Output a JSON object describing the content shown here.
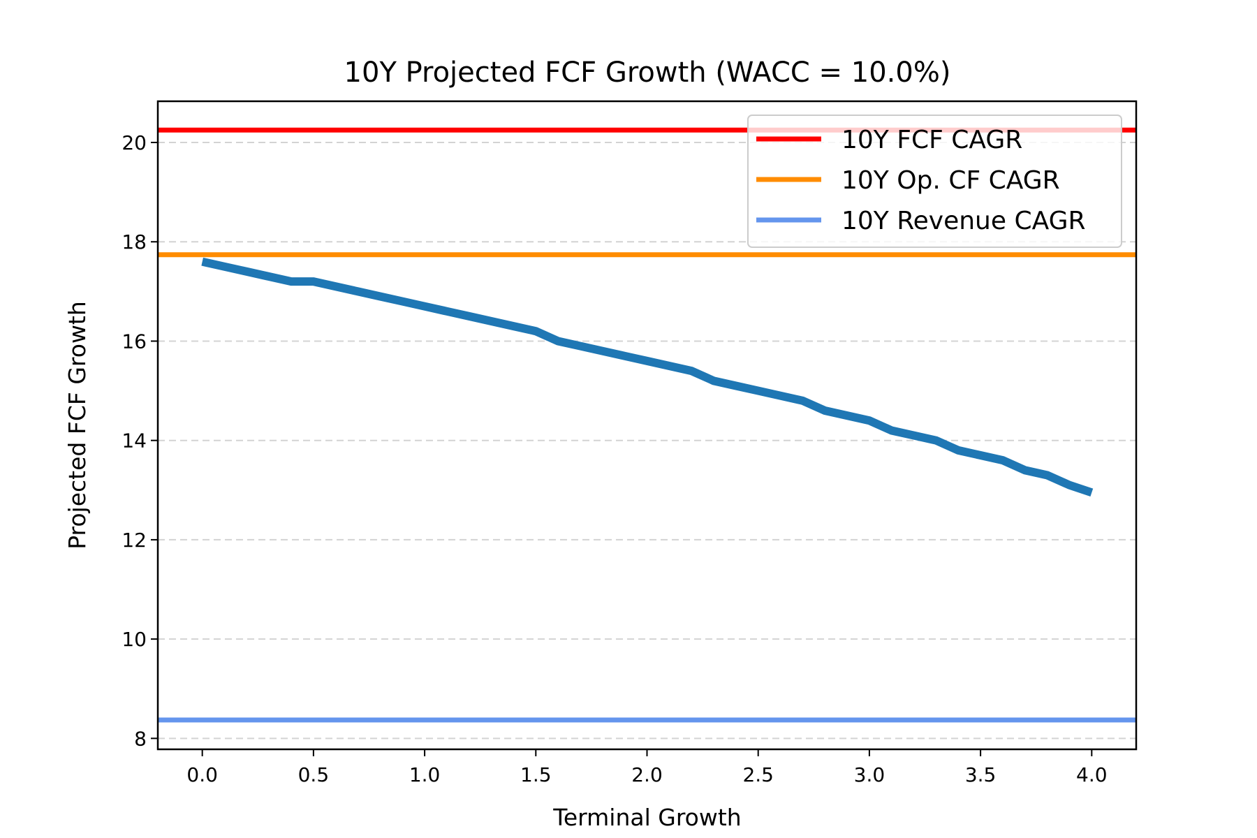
{
  "chart_data": {
    "type": "line",
    "title": "10Y Projected FCF Growth (WACC = 10.0%)",
    "xlabel": "Terminal Growth",
    "ylabel": "Projected FCF Growth",
    "xlim": [
      -0.2,
      4.2
    ],
    "ylim": [
      7.78,
      20.83
    ],
    "xticks": [
      "0.0",
      "0.5",
      "1.0",
      "1.5",
      "2.0",
      "2.5",
      "3.0",
      "3.5",
      "4.0"
    ],
    "yticks": [
      "8",
      "10",
      "12",
      "14",
      "16",
      "18",
      "20"
    ],
    "grid": "horizontal dashed",
    "legend_position": "top-right",
    "series": [
      {
        "name": "Projected FCF Growth",
        "color": "#1f77b4",
        "x": [
          0,
          0.1,
          0.2,
          0.3,
          0.4,
          0.5,
          0.6,
          0.7,
          0.8,
          0.9,
          1.0,
          1.1,
          1.2,
          1.3,
          1.4,
          1.5,
          1.6,
          1.7,
          1.8,
          1.9,
          2.0,
          2.1,
          2.2,
          2.3,
          2.4,
          2.5,
          2.6,
          2.7,
          2.8,
          2.9,
          3.0,
          3.1,
          3.2,
          3.3,
          3.4,
          3.5,
          3.6,
          3.7,
          3.8,
          3.9,
          4.0
        ],
        "y": [
          17.6,
          17.5,
          17.4,
          17.3,
          17.2,
          17.2,
          17.1,
          17.0,
          16.9,
          16.8,
          16.7,
          16.6,
          16.5,
          16.4,
          16.3,
          16.2,
          16.0,
          15.9,
          15.8,
          15.7,
          15.6,
          15.5,
          15.4,
          15.2,
          15.1,
          15.0,
          14.9,
          14.8,
          14.6,
          14.5,
          14.4,
          14.2,
          14.1,
          14.0,
          13.8,
          13.7,
          13.6,
          13.4,
          13.3,
          13.1,
          12.95
        ]
      }
    ],
    "hlines": [
      {
        "name": "10Y FCF CAGR",
        "value": 20.25,
        "color": "#ff0000"
      },
      {
        "name": "10Y Op. CF CAGR",
        "value": 17.74,
        "color": "#ff8c00"
      },
      {
        "name": "10Y Revenue CAGR",
        "value": 8.37,
        "color": "#6495ed"
      }
    ]
  }
}
